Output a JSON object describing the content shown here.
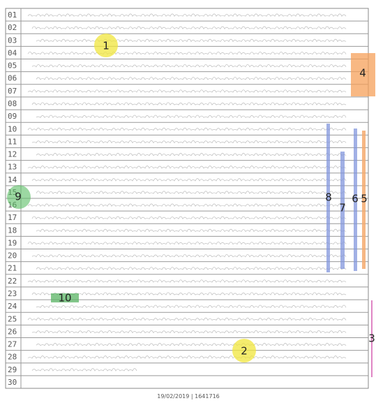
{
  "sheet": {
    "line_numbers": [
      "01",
      "02",
      "03",
      "04",
      "05",
      "06",
      "07",
      "08",
      "09",
      "10",
      "11",
      "12",
      "13",
      "14",
      "15",
      "16",
      "17",
      "18",
      "19",
      "20",
      "21",
      "22",
      "23",
      "24",
      "25",
      "26",
      "27",
      "28",
      "29",
      "30"
    ]
  },
  "annotations": [
    {
      "label": "1"
    },
    {
      "label": "2"
    },
    {
      "label": "3"
    },
    {
      "label": "4"
    },
    {
      "label": "5"
    },
    {
      "label": "6"
    },
    {
      "label": "7"
    },
    {
      "label": "8"
    },
    {
      "label": "9"
    },
    {
      "label": "10"
    }
  ],
  "footer": {
    "text": "19/02/2019 | 1641716"
  }
}
